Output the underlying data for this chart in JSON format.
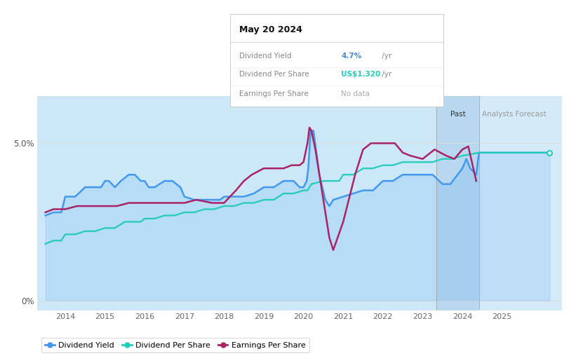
{
  "tooltip_title": "May 20 2024",
  "tooltip_items": [
    {
      "label": "Dividend Yield",
      "value": "4.7%",
      "suffix": " /yr",
      "color": "#4488dd"
    },
    {
      "label": "Dividend Per Share",
      "value": "US$1.320",
      "suffix": " /yr",
      "color": "#22ccbb"
    },
    {
      "label": "Earnings Per Share",
      "value": "No data",
      "suffix": "",
      "color": "#888888"
    }
  ],
  "ylim_min": -0.3,
  "ylim_max": 6.5,
  "ytick_vals": [
    0.0,
    5.0
  ],
  "ytick_labels": [
    "0%",
    "5.0%"
  ],
  "xlim_start": 2013.3,
  "xlim_end": 2026.5,
  "xticks": [
    2014,
    2015,
    2016,
    2017,
    2018,
    2019,
    2020,
    2021,
    2022,
    2023,
    2024,
    2025
  ],
  "past_region_start": 2023.35,
  "past_region_end": 2024.42,
  "forecast_region_start": 2024.42,
  "forecast_region_end": 2026.5,
  "bg_color": "#ffffff",
  "main_fill_color": "#cce8f8",
  "past_fill_color": "#b8d8f0",
  "forecast_fill_color": "#d4eaf8",
  "grid_color": "#dddddd",
  "dividend_yield_color": "#4499ee",
  "dividend_per_share_color": "#22ccbb",
  "earnings_per_share_color": "#aa2266",
  "dividend_yield_x": [
    2013.5,
    2013.7,
    2013.9,
    2014.0,
    2014.25,
    2014.5,
    2014.75,
    2014.9,
    2015.0,
    2015.1,
    2015.25,
    2015.4,
    2015.6,
    2015.75,
    2015.9,
    2016.0,
    2016.1,
    2016.25,
    2016.5,
    2016.7,
    2016.9,
    2017.0,
    2017.25,
    2017.5,
    2017.75,
    2017.9,
    2018.0,
    2018.25,
    2018.5,
    2018.75,
    2019.0,
    2019.25,
    2019.5,
    2019.75,
    2019.9,
    2020.0,
    2020.08,
    2020.12,
    2020.18,
    2020.25,
    2020.4,
    2020.55,
    2020.65,
    2020.75,
    2021.0,
    2021.25,
    2021.5,
    2021.75,
    2022.0,
    2022.25,
    2022.5,
    2022.75,
    2023.0,
    2023.25,
    2023.5,
    2023.7,
    2024.0,
    2024.1,
    2024.2,
    2024.35,
    2024.42,
    2025.0,
    2026.2
  ],
  "dividend_yield_y": [
    2.7,
    2.8,
    2.8,
    3.3,
    3.3,
    3.6,
    3.6,
    3.6,
    3.8,
    3.8,
    3.6,
    3.8,
    4.0,
    4.0,
    3.8,
    3.8,
    3.6,
    3.6,
    3.8,
    3.8,
    3.6,
    3.3,
    3.2,
    3.2,
    3.2,
    3.2,
    3.3,
    3.3,
    3.3,
    3.4,
    3.6,
    3.6,
    3.8,
    3.8,
    3.6,
    3.6,
    3.8,
    4.2,
    5.4,
    5.4,
    4.0,
    3.2,
    3.0,
    3.2,
    3.3,
    3.4,
    3.5,
    3.5,
    3.8,
    3.8,
    4.0,
    4.0,
    4.0,
    4.0,
    3.7,
    3.7,
    4.2,
    4.5,
    4.2,
    4.0,
    4.7,
    4.7,
    4.7
  ],
  "dividend_per_share_x": [
    2013.5,
    2013.7,
    2013.9,
    2014.0,
    2014.25,
    2014.5,
    2014.75,
    2015.0,
    2015.25,
    2015.5,
    2015.75,
    2015.9,
    2016.0,
    2016.25,
    2016.5,
    2016.75,
    2017.0,
    2017.25,
    2017.5,
    2017.75,
    2018.0,
    2018.25,
    2018.5,
    2018.75,
    2019.0,
    2019.25,
    2019.5,
    2019.75,
    2020.0,
    2020.1,
    2020.2,
    2020.5,
    2020.75,
    2020.9,
    2021.0,
    2021.25,
    2021.5,
    2021.75,
    2022.0,
    2022.25,
    2022.5,
    2022.75,
    2023.0,
    2023.25,
    2023.5,
    2023.75,
    2024.0,
    2024.42,
    2025.0,
    2026.2
  ],
  "dividend_per_share_y": [
    1.8,
    1.9,
    1.9,
    2.1,
    2.1,
    2.2,
    2.2,
    2.3,
    2.3,
    2.5,
    2.5,
    2.5,
    2.6,
    2.6,
    2.7,
    2.7,
    2.8,
    2.8,
    2.9,
    2.9,
    3.0,
    3.0,
    3.1,
    3.1,
    3.2,
    3.2,
    3.4,
    3.4,
    3.5,
    3.5,
    3.7,
    3.8,
    3.8,
    3.8,
    4.0,
    4.0,
    4.2,
    4.2,
    4.3,
    4.3,
    4.4,
    4.4,
    4.4,
    4.4,
    4.5,
    4.5,
    4.6,
    4.7,
    4.7,
    4.7
  ],
  "earnings_per_share_x": [
    2013.5,
    2013.7,
    2014.0,
    2014.3,
    2014.6,
    2014.9,
    2015.0,
    2015.3,
    2015.6,
    2016.0,
    2016.3,
    2016.7,
    2017.0,
    2017.3,
    2017.7,
    2018.0,
    2018.3,
    2018.5,
    2018.7,
    2019.0,
    2019.3,
    2019.5,
    2019.7,
    2019.9,
    2020.0,
    2020.1,
    2020.15,
    2020.2,
    2020.3,
    2020.5,
    2020.65,
    2020.75,
    2021.0,
    2021.3,
    2021.5,
    2021.7,
    2022.0,
    2022.3,
    2022.5,
    2022.7,
    2023.0,
    2023.3,
    2023.6,
    2023.8,
    2024.0,
    2024.15,
    2024.35
  ],
  "earnings_per_share_y": [
    2.8,
    2.9,
    2.9,
    3.0,
    3.0,
    3.0,
    3.0,
    3.0,
    3.1,
    3.1,
    3.1,
    3.1,
    3.1,
    3.2,
    3.1,
    3.1,
    3.5,
    3.8,
    4.0,
    4.2,
    4.2,
    4.2,
    4.3,
    4.3,
    4.4,
    5.0,
    5.5,
    5.4,
    4.8,
    3.2,
    2.0,
    1.6,
    2.5,
    4.0,
    4.8,
    5.0,
    5.0,
    5.0,
    4.7,
    4.6,
    4.5,
    4.8,
    4.6,
    4.5,
    4.8,
    4.9,
    3.8
  ]
}
